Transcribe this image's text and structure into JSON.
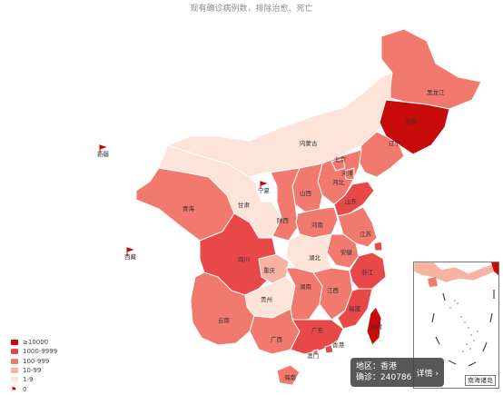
{
  "title": "现有确诊病例数，排除治愈、死亡",
  "colors": {
    "c5": "#c80a0a",
    "c4": "#e84848",
    "c3": "#f2796e",
    "c2": "#f8b2a2",
    "c1": "#fde3d8",
    "c0": "#ffffff",
    "flag": "#cc0000"
  },
  "legend": [
    {
      "label": "≥10000",
      "color": "#c80a0a"
    },
    {
      "label": "1000-9999",
      "color": "#e84848"
    },
    {
      "label": "100-999",
      "color": "#f2796e"
    },
    {
      "label": "10-99",
      "color": "#f8b2a2"
    },
    {
      "label": "1-9",
      "color": "#fde3d8"
    },
    {
      "label": "0",
      "color": "flag"
    }
  ],
  "provinces": [
    {
      "name": "黑龙江",
      "level": "c3"
    },
    {
      "name": "吉林",
      "level": "c5"
    },
    {
      "name": "辽宁",
      "level": "c3"
    },
    {
      "name": "内蒙古",
      "level": "c1"
    },
    {
      "name": "新疆",
      "level": "c0"
    },
    {
      "name": "西藏",
      "level": "c0"
    },
    {
      "name": "青海",
      "level": "c3"
    },
    {
      "name": "甘肃",
      "level": "c1"
    },
    {
      "name": "宁夏",
      "level": "c0"
    },
    {
      "name": "陕西",
      "level": "c3"
    },
    {
      "name": "山西",
      "level": "c3"
    },
    {
      "name": "河北",
      "level": "c3"
    },
    {
      "name": "北京",
      "level": "c3"
    },
    {
      "name": "天津",
      "level": "c3"
    },
    {
      "name": "山东",
      "level": "c4"
    },
    {
      "name": "河南",
      "level": "c3"
    },
    {
      "name": "江苏",
      "level": "c3"
    },
    {
      "name": "安徽",
      "level": "c3"
    },
    {
      "name": "湖北",
      "level": "c1"
    },
    {
      "name": "四川",
      "level": "c4"
    },
    {
      "name": "重庆",
      "level": "c2"
    },
    {
      "name": "贵州",
      "level": "c1"
    },
    {
      "name": "云南",
      "level": "c3"
    },
    {
      "name": "湖南",
      "level": "c3"
    },
    {
      "name": "江西",
      "level": "c3"
    },
    {
      "name": "浙江",
      "level": "c4"
    },
    {
      "name": "福建",
      "level": "c4"
    },
    {
      "name": "广西",
      "level": "c3"
    },
    {
      "name": "广东",
      "level": "c4"
    },
    {
      "name": "海南",
      "level": "c3"
    },
    {
      "name": "台湾",
      "level": "c5"
    },
    {
      "name": "香港",
      "level": "c4"
    },
    {
      "name": "澳门",
      "level": "c3"
    },
    {
      "name": "上海",
      "level": "c4"
    }
  ],
  "inset": {
    "title": "南海诸岛"
  },
  "tooltip": {
    "region_label": "地区：",
    "region": "香港",
    "confirmed_label": "确诊：",
    "confirmed": "240786",
    "detail_button": "详情 ›"
  }
}
